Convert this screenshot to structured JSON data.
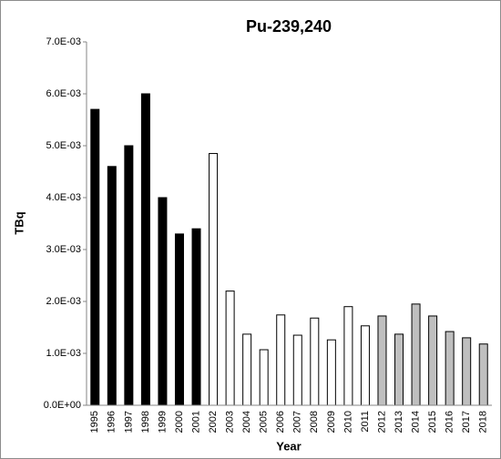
{
  "chart_data": {
    "type": "bar",
    "title": "Pu-239,240",
    "x_label": "Year",
    "y_label": "TBq",
    "categories": [
      "1995",
      "1996",
      "1997",
      "1998",
      "1999",
      "2000",
      "2001",
      "2002",
      "2003",
      "2004",
      "2005",
      "2006",
      "2007",
      "2008",
      "2009",
      "2010",
      "2011",
      "2012",
      "2013",
      "2014",
      "2015",
      "2016",
      "2017",
      "2018"
    ],
    "values": [
      0.0057,
      0.0046,
      0.005,
      0.006,
      0.004,
      0.0033,
      0.0034,
      0.00485,
      0.0022,
      0.00137,
      0.00107,
      0.00174,
      0.00135,
      0.00168,
      0.00126,
      0.0019,
      0.00153,
      0.00172,
      0.00137,
      0.00195,
      0.00172,
      0.00142,
      0.0013,
      0.00118
    ],
    "colors": [
      "#000000",
      "#000000",
      "#000000",
      "#000000",
      "#000000",
      "#000000",
      "#000000",
      "#ffffff",
      "#ffffff",
      "#ffffff",
      "#ffffff",
      "#ffffff",
      "#ffffff",
      "#ffffff",
      "#ffffff",
      "#ffffff",
      "#ffffff",
      "#bfbfbf",
      "#bfbfbf",
      "#bfbfbf",
      "#bfbfbf",
      "#bfbfbf",
      "#bfbfbf",
      "#bfbfbf"
    ],
    "ylim": [
      0,
      0.007
    ],
    "yticks": [
      {
        "value": 0,
        "label": "0.0E+00"
      },
      {
        "value": 0.001,
        "label": "1.0E-03"
      },
      {
        "value": 0.002,
        "label": "2.0E-03"
      },
      {
        "value": 0.003,
        "label": "3.0E-03"
      },
      {
        "value": 0.004,
        "label": "4.0E-03"
      },
      {
        "value": 0.005,
        "label": "5.0E-03"
      },
      {
        "value": 0.006,
        "label": "6.0E-03"
      },
      {
        "value": 0.007,
        "label": "7.0E-03"
      }
    ],
    "grid": false
  }
}
